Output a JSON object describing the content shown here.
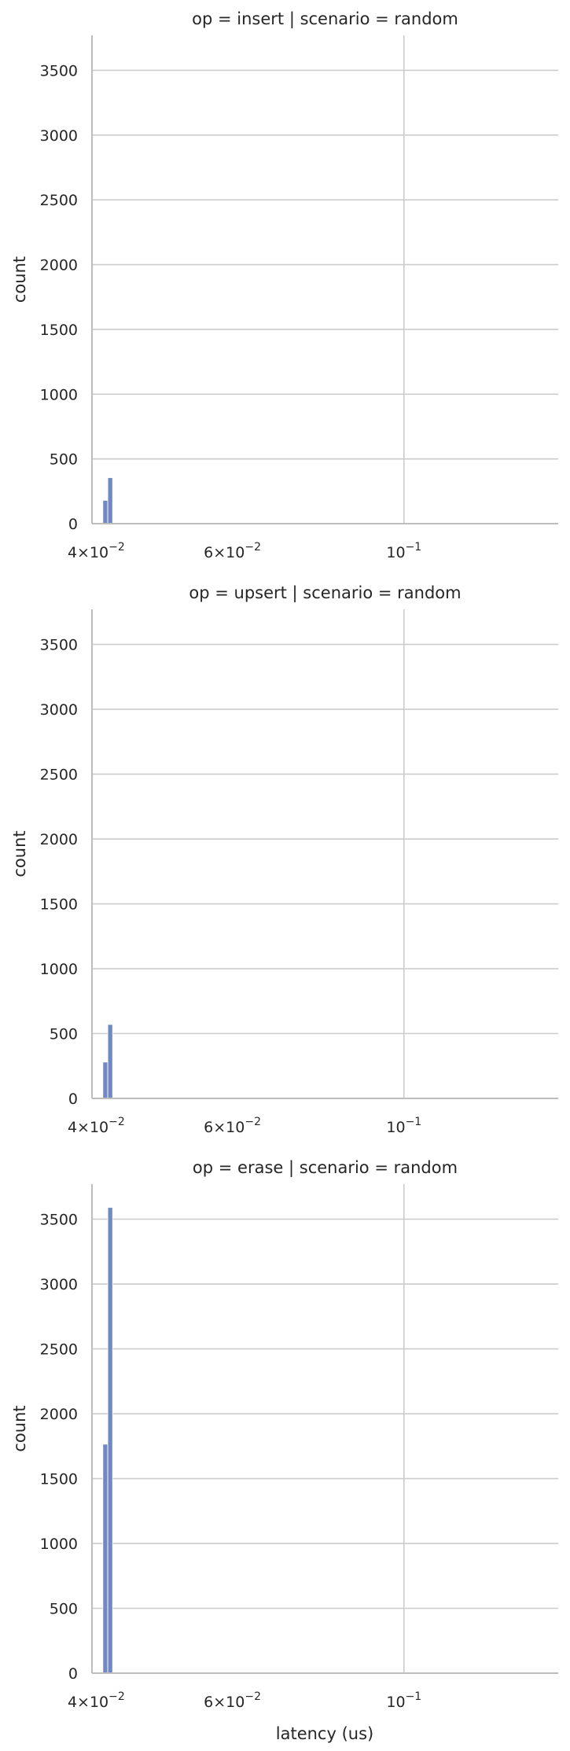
{
  "chart_data": {
    "type": "bar",
    "kind": "histogram",
    "xscale": "log",
    "xlabel": "latency (us)",
    "ylabel": "count",
    "grid": true,
    "color": "#7089c3",
    "xlim": [
      0.0395,
      0.1583
    ],
    "ylim": [
      0,
      3770
    ],
    "yticks": [
      0,
      500,
      1000,
      1500,
      2000,
      2500,
      3000,
      3500
    ],
    "xticks": [
      {
        "value": 0.04,
        "mantissa": "4",
        "base": "10",
        "exp": "−2"
      },
      {
        "value": 0.06,
        "mantissa": "6",
        "base": "10",
        "exp": "−2"
      },
      {
        "value": 0.1,
        "mantissa": "",
        "base": "10",
        "exp": "−1"
      }
    ],
    "panels": [
      {
        "title": "op = insert | scenario = random",
        "bins": [
          {
            "x0": 0.0408,
            "x1": 0.0414,
            "count": 180
          },
          {
            "x0": 0.0414,
            "x1": 0.042,
            "count": 355
          }
        ]
      },
      {
        "title": "op = upsert | scenario = random",
        "bins": [
          {
            "x0": 0.0408,
            "x1": 0.0414,
            "count": 280
          },
          {
            "x0": 0.0414,
            "x1": 0.042,
            "count": 570
          }
        ]
      },
      {
        "title": "op = erase | scenario = random",
        "bins": [
          {
            "x0": 0.0408,
            "x1": 0.0414,
            "count": 1765
          },
          {
            "x0": 0.0414,
            "x1": 0.042,
            "count": 3590
          }
        ]
      }
    ]
  }
}
